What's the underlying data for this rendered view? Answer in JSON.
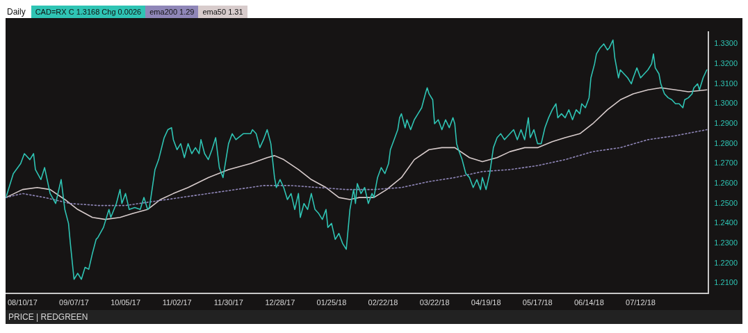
{
  "chart_data": {
    "type": "line",
    "title": "Daily",
    "legend": "top left",
    "grid": false,
    "marker": "none",
    "xlim": [
      "2017-08-01",
      "2018-08-18"
    ],
    "xticks": [
      {
        "value": "2017-08-10",
        "label": "08/10/17"
      },
      {
        "value": "2017-09-07",
        "label": "09/07/17"
      },
      {
        "value": "2017-10-05",
        "label": "10/05/17"
      },
      {
        "value": "2017-11-02",
        "label": "11/02/17"
      },
      {
        "value": "2017-11-30",
        "label": "11/30/17"
      },
      {
        "value": "2017-12-28",
        "label": "12/28/17"
      },
      {
        "value": "2018-01-25",
        "label": "01/25/18"
      },
      {
        "value": "2018-02-22",
        "label": "02/22/18"
      },
      {
        "value": "2018-03-22",
        "label": "03/22/18"
      },
      {
        "value": "2018-04-19",
        "label": "04/19/18"
      },
      {
        "value": "2018-05-17",
        "label": "05/17/18"
      },
      {
        "value": "2018-06-14",
        "label": "06/14/18"
      },
      {
        "value": "2018-07-12",
        "label": "07/12/18"
      }
    ],
    "ylim": [
      1.205,
      1.336
    ],
    "yticks": [
      {
        "value": 1.21,
        "label": "1.2100"
      },
      {
        "value": 1.22,
        "label": "1.2200"
      },
      {
        "value": 1.23,
        "label": "1.2300"
      },
      {
        "value": 1.24,
        "label": "1.2400"
      },
      {
        "value": 1.25,
        "label": "1.2500"
      },
      {
        "value": 1.26,
        "label": "1.2600"
      },
      {
        "value": 1.27,
        "label": "1.2700"
      },
      {
        "value": 1.28,
        "label": "1.2800"
      },
      {
        "value": 1.29,
        "label": "1.2900"
      },
      {
        "value": 1.3,
        "label": "1.3000"
      },
      {
        "value": 1.31,
        "label": "1.3100"
      },
      {
        "value": 1.32,
        "label": "1.3200"
      },
      {
        "value": 1.33,
        "label": "1.3300"
      }
    ],
    "annotations": [
      "PRICE | REDGREEN"
    ],
    "series": [
      {
        "name": "CAD=RX C 1.3168 Chg 0.0026",
        "color": "#2fc4b4",
        "line_style": "solid",
        "x": [
          "2017-08-01",
          "2017-08-05",
          "2017-08-09",
          "2017-08-11",
          "2017-08-14",
          "2017-08-16",
          "2017-08-17",
          "2017-08-20",
          "2017-08-22",
          "2017-08-25",
          "2017-08-28",
          "2017-08-31",
          "2017-09-02",
          "2017-09-04",
          "2017-09-05",
          "2017-09-07",
          "2017-09-09",
          "2017-09-11",
          "2017-09-13",
          "2017-09-15",
          "2017-09-17",
          "2017-09-19",
          "2017-09-20",
          "2017-09-23",
          "2017-09-26",
          "2017-09-27",
          "2017-09-30",
          "2017-10-02",
          "2017-10-03",
          "2017-10-05",
          "2017-10-07",
          "2017-10-10",
          "2017-10-13",
          "2017-10-15",
          "2017-10-17",
          "2017-10-18",
          "2017-10-21",
          "2017-10-23",
          "2017-10-26",
          "2017-10-28",
          "2017-10-30",
          "2017-10-31",
          "2017-11-02",
          "2017-11-04",
          "2017-11-06",
          "2017-11-08",
          "2017-11-10",
          "2017-11-12",
          "2017-11-14",
          "2017-11-15",
          "2017-11-17",
          "2017-11-19",
          "2017-11-21",
          "2017-11-23",
          "2017-11-25",
          "2017-11-27",
          "2017-11-30",
          "2017-12-02",
          "2017-12-04",
          "2017-12-08",
          "2017-12-12",
          "2017-12-13",
          "2017-12-15",
          "2017-12-17",
          "2017-12-19",
          "2017-12-21",
          "2017-12-23",
          "2017-12-25",
          "2017-12-26",
          "2017-12-28",
          "2017-12-30",
          "2018-01-01",
          "2018-01-03",
          "2018-01-05",
          "2018-01-07",
          "2018-01-08",
          "2018-01-10",
          "2018-01-12",
          "2018-01-14",
          "2018-01-16",
          "2018-01-18",
          "2018-01-20",
          "2018-01-22",
          "2018-01-23",
          "2018-01-25",
          "2018-01-27",
          "2018-01-29",
          "2018-01-31",
          "2018-02-02",
          "2018-02-04",
          "2018-02-05",
          "2018-02-06",
          "2018-02-07",
          "2018-02-08",
          "2018-02-10",
          "2018-02-12",
          "2018-02-14",
          "2018-02-16",
          "2018-02-17",
          "2018-02-19",
          "2018-02-21",
          "2018-02-23",
          "2018-02-25",
          "2018-02-26",
          "2018-02-28",
          "2018-03-02",
          "2018-03-03",
          "2018-03-04",
          "2018-03-06",
          "2018-03-07",
          "2018-03-09",
          "2018-03-11",
          "2018-03-13",
          "2018-03-15",
          "2018-03-17",
          "2018-03-18",
          "2018-03-19",
          "2018-03-21",
          "2018-03-22",
          "2018-03-24",
          "2018-03-26",
          "2018-03-28",
          "2018-03-30",
          "2018-04-01",
          "2018-04-02",
          "2018-04-03",
          "2018-04-04",
          "2018-04-06",
          "2018-04-08",
          "2018-04-10",
          "2018-04-12",
          "2018-04-14",
          "2018-04-16",
          "2018-04-17",
          "2018-04-19",
          "2018-04-21",
          "2018-04-23",
          "2018-04-25",
          "2018-04-27",
          "2018-04-29",
          "2018-04-30",
          "2018-05-02",
          "2018-05-04",
          "2018-05-06",
          "2018-05-08",
          "2018-05-10",
          "2018-05-12",
          "2018-05-13",
          "2018-05-15",
          "2018-05-17",
          "2018-05-19",
          "2018-05-21",
          "2018-05-23",
          "2018-05-25",
          "2018-05-27",
          "2018-05-28",
          "2018-05-30",
          "2018-06-01",
          "2018-06-03",
          "2018-06-05",
          "2018-06-07",
          "2018-06-09",
          "2018-06-10",
          "2018-06-12",
          "2018-06-14",
          "2018-06-15",
          "2018-06-17",
          "2018-06-18",
          "2018-06-20",
          "2018-06-22",
          "2018-06-24",
          "2018-06-25",
          "2018-06-27",
          "2018-06-28",
          "2018-06-30",
          "2018-07-01",
          "2018-07-03",
          "2018-07-05",
          "2018-07-07",
          "2018-07-08",
          "2018-07-10",
          "2018-07-12",
          "2018-07-14",
          "2018-07-16",
          "2018-07-18",
          "2018-07-19",
          "2018-07-20",
          "2018-07-22",
          "2018-07-23",
          "2018-07-25",
          "2018-07-27",
          "2018-07-29",
          "2018-07-31",
          "2018-08-02",
          "2018-08-04",
          "2018-08-05",
          "2018-08-07",
          "2018-08-09",
          "2018-08-10",
          "2018-08-12",
          "2018-08-13",
          "2018-08-15",
          "2018-08-17"
        ],
        "values": [
          1.253,
          1.265,
          1.27,
          1.275,
          1.272,
          1.275,
          1.267,
          1.262,
          1.268,
          1.255,
          1.25,
          1.262,
          1.247,
          1.24,
          1.23,
          1.212,
          1.215,
          1.212,
          1.218,
          1.217,
          1.225,
          1.232,
          1.233,
          1.238,
          1.247,
          1.243,
          1.25,
          1.257,
          1.25,
          1.255,
          1.247,
          1.248,
          1.247,
          1.253,
          1.247,
          1.248,
          1.267,
          1.272,
          1.283,
          1.287,
          1.288,
          1.282,
          1.277,
          1.28,
          1.273,
          1.28,
          1.275,
          1.278,
          1.275,
          1.282,
          1.275,
          1.272,
          1.277,
          1.283,
          1.268,
          1.263,
          1.28,
          1.285,
          1.282,
          1.285,
          1.285,
          1.287,
          1.285,
          1.278,
          1.282,
          1.287,
          1.28,
          1.263,
          1.258,
          1.262,
          1.258,
          1.252,
          1.255,
          1.247,
          1.255,
          1.243,
          1.25,
          1.247,
          1.255,
          1.247,
          1.245,
          1.242,
          1.247,
          1.238,
          1.24,
          1.232,
          1.235,
          1.23,
          1.227,
          1.247,
          1.252,
          1.257,
          1.25,
          1.26,
          1.255,
          1.258,
          1.25,
          1.255,
          1.253,
          1.263,
          1.268,
          1.265,
          1.27,
          1.277,
          1.282,
          1.287,
          1.293,
          1.295,
          1.288,
          1.292,
          1.287,
          1.292,
          1.295,
          1.298,
          1.305,
          1.308,
          1.305,
          1.302,
          1.29,
          1.292,
          1.287,
          1.292,
          1.288,
          1.293,
          1.29,
          1.28,
          1.277,
          1.272,
          1.265,
          1.263,
          1.258,
          1.262,
          1.257,
          1.263,
          1.257,
          1.265,
          1.278,
          1.283,
          1.285,
          1.282,
          1.283,
          1.285,
          1.287,
          1.282,
          1.287,
          1.282,
          1.293,
          1.283,
          1.287,
          1.28,
          1.28,
          1.288,
          1.293,
          1.297,
          1.3,
          1.293,
          1.295,
          1.293,
          1.297,
          1.292,
          1.297,
          1.295,
          1.3,
          1.298,
          1.303,
          1.313,
          1.32,
          1.325,
          1.328,
          1.33,
          1.327,
          1.328,
          1.332,
          1.323,
          1.313,
          1.317,
          1.315,
          1.313,
          1.31,
          1.313,
          1.318,
          1.313,
          1.315,
          1.317,
          1.32,
          1.325,
          1.318,
          1.315,
          1.31,
          1.305,
          1.303,
          1.302,
          1.3,
          1.3,
          1.298,
          1.302,
          1.303,
          1.305,
          1.308,
          1.31,
          1.307,
          1.313,
          1.317
        ]
      },
      {
        "name": "ema200 1.29",
        "color": "#8f86b8",
        "line_style": "dotted",
        "x": [
          "2017-08-01",
          "2017-08-10",
          "2017-08-22",
          "2017-09-05",
          "2017-09-20",
          "2017-10-05",
          "2017-10-20",
          "2017-11-04",
          "2017-11-19",
          "2017-12-04",
          "2017-12-19",
          "2018-01-03",
          "2018-01-18",
          "2018-02-02",
          "2018-02-17",
          "2018-03-04",
          "2018-03-19",
          "2018-04-02",
          "2018-04-17",
          "2018-05-02",
          "2018-05-17",
          "2018-06-01",
          "2018-06-16",
          "2018-07-01",
          "2018-07-16",
          "2018-07-31",
          "2018-08-17"
        ],
        "values": [
          1.253,
          1.255,
          1.253,
          1.25,
          1.249,
          1.249,
          1.251,
          1.253,
          1.255,
          1.257,
          1.259,
          1.259,
          1.258,
          1.257,
          1.257,
          1.258,
          1.261,
          1.263,
          1.266,
          1.267,
          1.269,
          1.272,
          1.276,
          1.278,
          1.282,
          1.284,
          1.287
        ]
      },
      {
        "name": "ema50 1.31",
        "color": "#d8cccc",
        "line_style": "solid",
        "x": [
          "2017-08-01",
          "2017-08-10",
          "2017-08-18",
          "2017-08-25",
          "2017-09-02",
          "2017-09-09",
          "2017-09-17",
          "2017-09-24",
          "2017-10-02",
          "2017-10-09",
          "2017-10-17",
          "2017-10-24",
          "2017-10-31",
          "2017-11-08",
          "2017-11-19",
          "2017-11-30",
          "2017-12-12",
          "2017-12-21",
          "2017-12-25",
          "2017-12-30",
          "2018-01-07",
          "2018-01-14",
          "2018-01-22",
          "2018-01-29",
          "2018-02-04",
          "2018-02-09",
          "2018-02-17",
          "2018-02-24",
          "2018-03-04",
          "2018-03-11",
          "2018-03-19",
          "2018-03-26",
          "2018-04-02",
          "2018-04-10",
          "2018-04-17",
          "2018-04-25",
          "2018-05-02",
          "2018-05-10",
          "2018-05-17",
          "2018-05-25",
          "2018-06-01",
          "2018-06-09",
          "2018-06-16",
          "2018-06-24",
          "2018-07-01",
          "2018-07-08",
          "2018-07-16",
          "2018-07-23",
          "2018-07-31",
          "2018-08-07",
          "2018-08-17"
        ],
        "values": [
          1.253,
          1.257,
          1.258,
          1.257,
          1.252,
          1.247,
          1.243,
          1.242,
          1.243,
          1.245,
          1.247,
          1.252,
          1.255,
          1.258,
          1.263,
          1.267,
          1.27,
          1.273,
          1.274,
          1.272,
          1.267,
          1.262,
          1.258,
          1.253,
          1.252,
          1.253,
          1.253,
          1.257,
          1.263,
          1.272,
          1.277,
          1.278,
          1.278,
          1.273,
          1.271,
          1.273,
          1.276,
          1.278,
          1.278,
          1.281,
          1.283,
          1.285,
          1.29,
          1.297,
          1.302,
          1.305,
          1.307,
          1.308,
          1.307,
          1.306,
          1.307
        ]
      }
    ]
  }
}
